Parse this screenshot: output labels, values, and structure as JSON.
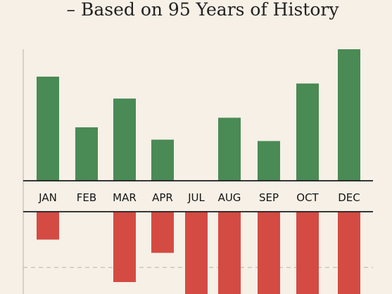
{
  "chart_data": {
    "type": "bar",
    "title": "– Based on 95 Years of History",
    "categories": [
      "JAN",
      "FEB",
      "MAR",
      "APR",
      "JUL",
      "AUG",
      "SEP",
      "OCT",
      "DEC"
    ],
    "series": [
      {
        "values": [
          7.6,
          3.9,
          6.0,
          3.0,
          0,
          4.6,
          2.9,
          7.1,
          9.6
        ],
        "color": "#4a8a55"
      },
      {
        "values": [
          -2.1,
          0,
          -5.3,
          -3.1,
          -6.2,
          -6.2,
          -6.2,
          -6.2,
          -6.2
        ],
        "color": "#d44b43"
      }
    ],
    "ylim": [
      -6.2,
      9.6
    ],
    "reference_line": -4.2,
    "grid": false
  },
  "colors": {
    "background": "#f6f0e6",
    "positive": "#4a8a55",
    "negative": "#d44b43",
    "axis": "#1c1c1c",
    "reference_line": "#b9b2a8"
  }
}
